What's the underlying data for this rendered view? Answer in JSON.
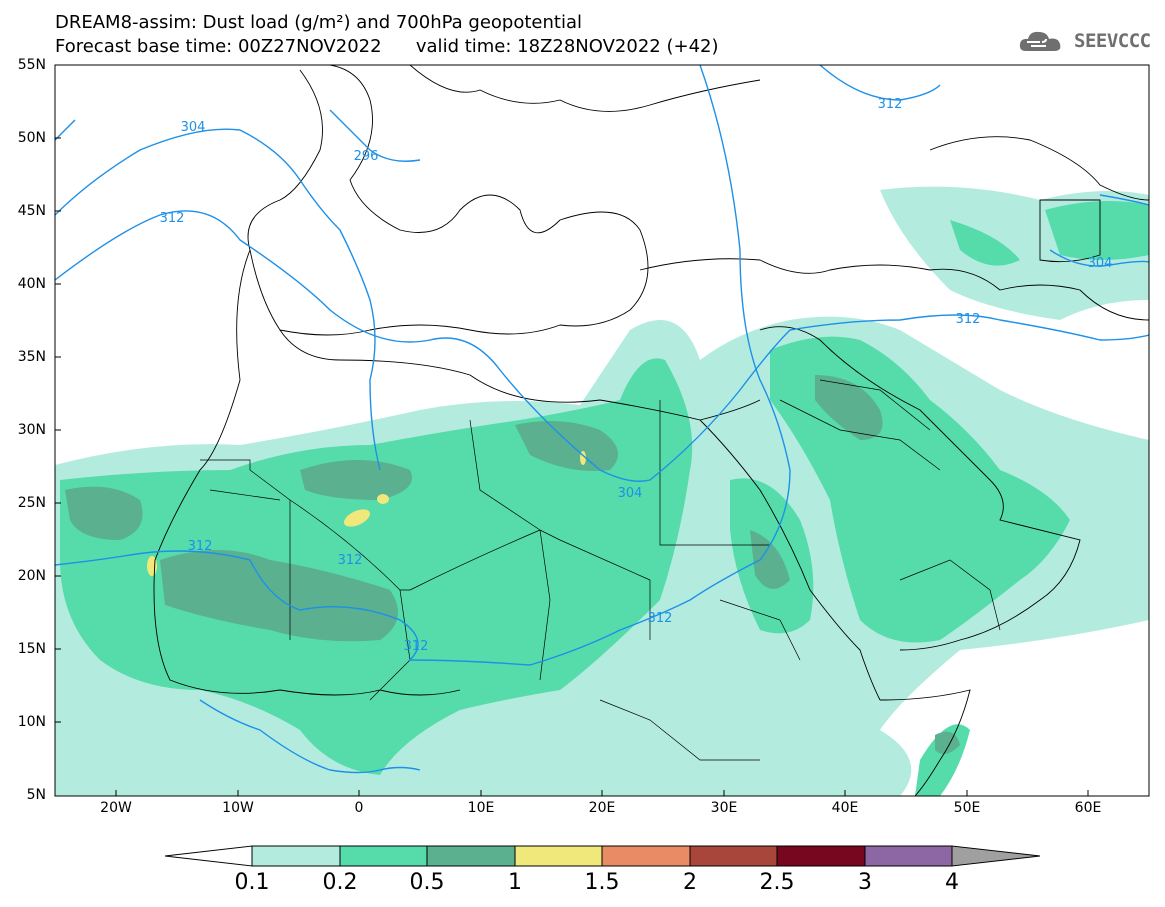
{
  "title": {
    "line1": "DREAM8-assim: Dust load (g/m²) and 700hPa geopotential",
    "line2": "Forecast base time: 00Z27NOV2022      valid time: 18Z28NOV2022 (+42)"
  },
  "logo": {
    "icon": "cloud-icon",
    "text": "SEEVCCC"
  },
  "axes": {
    "lat_labels": [
      "55N",
      "50N",
      "45N",
      "40N",
      "35N",
      "30N",
      "25N",
      "20N",
      "15N",
      "10N",
      "5N"
    ],
    "lon_labels": [
      "20W",
      "10W",
      "0",
      "10E",
      "20E",
      "30E",
      "40E",
      "50E",
      "60E"
    ]
  },
  "contour_labels": [
    "296",
    "304",
    "312",
    "312",
    "304",
    "312",
    "312",
    "312",
    "312",
    "304",
    "312"
  ],
  "colorbar": {
    "labels": [
      "0.1",
      "0.2",
      "0.5",
      "1",
      "1.5",
      "2",
      "2.5",
      "3",
      "4"
    ],
    "colors": [
      "#ffffff",
      "#b3ecdf",
      "#55dcaa",
      "#5bb08f",
      "#f0e87a",
      "#e98c66",
      "#a9463c",
      "#76071f",
      "#8c67a3",
      "#a0a0a0"
    ]
  },
  "colors": {
    "dust_low": "#b3ecdf",
    "dust_mid": "#55dcaa",
    "dust_high": "#5bb08f",
    "dust_peak": "#f0e87a",
    "contour": "#1e90e8",
    "border": "#000000"
  }
}
